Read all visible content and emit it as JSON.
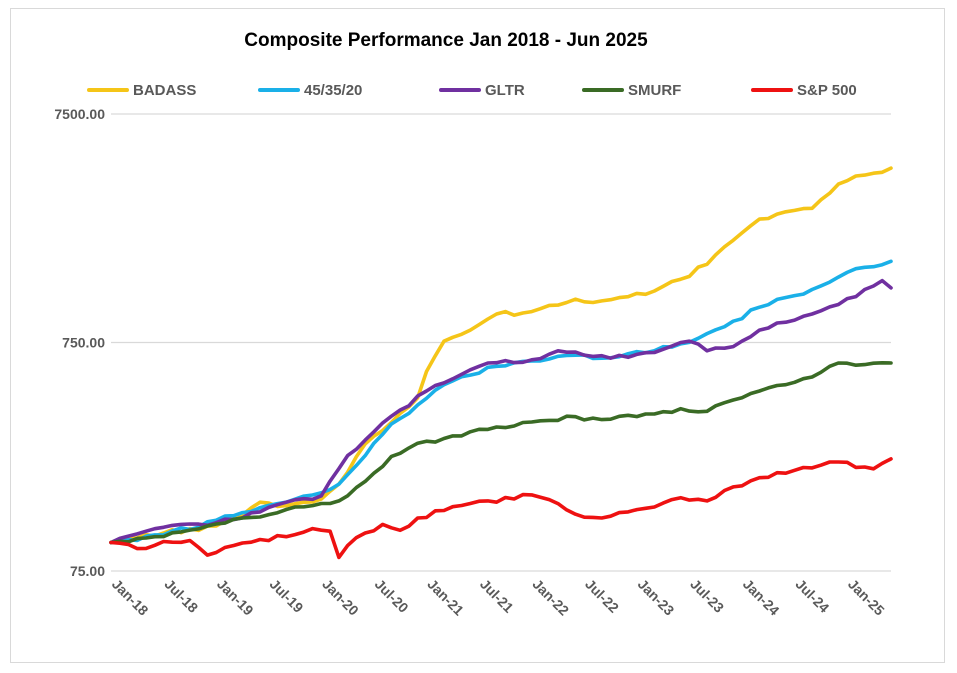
{
  "chart_data": {
    "type": "line",
    "title": "Composite Performance Jan 2018 - Jun 2025",
    "xlabel": "",
    "ylabel": "",
    "yscale": "log",
    "ylim": [
      75,
      7500
    ],
    "yticks": [
      75,
      750,
      7500
    ],
    "ytick_labels": [
      "75.00",
      "750.00",
      "7500.00"
    ],
    "x_start": "2018-01",
    "x_end": "2025-06",
    "xtick_labels": [
      "Jan-18",
      "Jul-18",
      "Jan-19",
      "Jul-19",
      "Jan-20",
      "Jul-20",
      "Jan-21",
      "Jul-21",
      "Jan-22",
      "Jul-22",
      "Jan-23",
      "Jul-23",
      "Jan-24",
      "Jul-24",
      "Jan-25"
    ],
    "grid": "horizontal",
    "legend_position": "top",
    "colors": {
      "BADASS": "#f5c518",
      "45/35/20": "#1ab0e8",
      "GLTR": "#7030a0",
      "SMURF": "#3a6b25",
      "S&P 500": "#ee1111"
    },
    "series": [
      {
        "name": "BADASS",
        "points": [
          [
            "2018-01",
            100
          ],
          [
            "2018-07",
            110
          ],
          [
            "2019-01",
            118
          ],
          [
            "2019-04",
            132
          ],
          [
            "2019-06",
            150
          ],
          [
            "2019-09",
            145
          ],
          [
            "2020-01",
            155
          ],
          [
            "2020-03",
            180
          ],
          [
            "2020-06",
            270
          ],
          [
            "2020-09",
            335
          ],
          [
            "2020-12",
            430
          ],
          [
            "2021-01",
            560
          ],
          [
            "2021-03",
            760
          ],
          [
            "2021-06",
            850
          ],
          [
            "2021-09",
            1000
          ],
          [
            "2021-12",
            1010
          ],
          [
            "2022-03",
            1090
          ],
          [
            "2022-06",
            1160
          ],
          [
            "2022-09",
            1140
          ],
          [
            "2022-12",
            1190
          ],
          [
            "2023-03",
            1260
          ],
          [
            "2023-06",
            1420
          ],
          [
            "2023-09",
            1650
          ],
          [
            "2023-12",
            2100
          ],
          [
            "2024-03",
            2600
          ],
          [
            "2024-06",
            2800
          ],
          [
            "2024-09",
            2900
          ],
          [
            "2024-12",
            3700
          ],
          [
            "2025-03",
            4050
          ],
          [
            "2025-06",
            4350
          ]
        ]
      },
      {
        "name": "45/35/20",
        "points": [
          [
            "2018-01",
            100
          ],
          [
            "2018-07",
            108
          ],
          [
            "2019-01",
            125
          ],
          [
            "2019-06",
            142
          ],
          [
            "2019-09",
            150
          ],
          [
            "2020-01",
            165
          ],
          [
            "2020-03",
            180
          ],
          [
            "2020-06",
            240
          ],
          [
            "2020-09",
            330
          ],
          [
            "2020-12",
            400
          ],
          [
            "2021-03",
            490
          ],
          [
            "2021-06",
            540
          ],
          [
            "2021-09",
            590
          ],
          [
            "2021-12",
            620
          ],
          [
            "2022-03",
            635
          ],
          [
            "2022-06",
            660
          ],
          [
            "2022-09",
            640
          ],
          [
            "2022-12",
            670
          ],
          [
            "2023-03",
            690
          ],
          [
            "2023-06",
            740
          ],
          [
            "2023-09",
            820
          ],
          [
            "2023-12",
            930
          ],
          [
            "2024-03",
            1070
          ],
          [
            "2024-06",
            1180
          ],
          [
            "2024-09",
            1280
          ],
          [
            "2024-12",
            1450
          ],
          [
            "2025-03",
            1600
          ],
          [
            "2025-06",
            1700
          ]
        ]
      },
      {
        "name": "GLTR",
        "points": [
          [
            "2018-01",
            100
          ],
          [
            "2018-05",
            112
          ],
          [
            "2018-09",
            120
          ],
          [
            "2019-01",
            122
          ],
          [
            "2019-06",
            136
          ],
          [
            "2019-09",
            150
          ],
          [
            "2020-01",
            160
          ],
          [
            "2020-04",
            240
          ],
          [
            "2020-07",
            305
          ],
          [
            "2020-10",
            380
          ],
          [
            "2021-01",
            460
          ],
          [
            "2021-04",
            520
          ],
          [
            "2021-07",
            590
          ],
          [
            "2021-10",
            625
          ],
          [
            "2022-01",
            630
          ],
          [
            "2022-04",
            690
          ],
          [
            "2022-07",
            660
          ],
          [
            "2022-10",
            640
          ],
          [
            "2023-01",
            665
          ],
          [
            "2023-04",
            700
          ],
          [
            "2023-07",
            760
          ],
          [
            "2023-09",
            690
          ],
          [
            "2023-12",
            720
          ],
          [
            "2024-03",
            850
          ],
          [
            "2024-06",
            920
          ],
          [
            "2024-09",
            1000
          ],
          [
            "2024-12",
            1100
          ],
          [
            "2025-03",
            1280
          ],
          [
            "2025-05",
            1400
          ],
          [
            "2025-06",
            1300
          ]
        ]
      },
      {
        "name": "SMURF",
        "points": [
          [
            "2018-01",
            100
          ],
          [
            "2018-06",
            106
          ],
          [
            "2018-12",
            118
          ],
          [
            "2019-04",
            128
          ],
          [
            "2019-08",
            135
          ],
          [
            "2019-12",
            145
          ],
          [
            "2020-03",
            152
          ],
          [
            "2020-06",
            185
          ],
          [
            "2020-09",
            238
          ],
          [
            "2020-12",
            272
          ],
          [
            "2021-03",
            285
          ],
          [
            "2021-06",
            305
          ],
          [
            "2021-09",
            320
          ],
          [
            "2021-12",
            335
          ],
          [
            "2022-03",
            342
          ],
          [
            "2022-06",
            355
          ],
          [
            "2022-09",
            345
          ],
          [
            "2022-12",
            360
          ],
          [
            "2023-03",
            365
          ],
          [
            "2023-06",
            385
          ],
          [
            "2023-09",
            375
          ],
          [
            "2023-12",
            420
          ],
          [
            "2024-03",
            460
          ],
          [
            "2024-06",
            490
          ],
          [
            "2024-09",
            530
          ],
          [
            "2024-12",
            610
          ],
          [
            "2025-03",
            600
          ],
          [
            "2025-06",
            610
          ]
        ]
      },
      {
        "name": "S&P 500",
        "points": [
          [
            "2018-01",
            100
          ],
          [
            "2018-04",
            94
          ],
          [
            "2018-07",
            101
          ],
          [
            "2018-10",
            102
          ],
          [
            "2018-12",
            88
          ],
          [
            "2019-03",
            97
          ],
          [
            "2019-06",
            103
          ],
          [
            "2019-09",
            106
          ],
          [
            "2019-12",
            115
          ],
          [
            "2020-02",
            112
          ],
          [
            "2020-03",
            86
          ],
          [
            "2020-05",
            105
          ],
          [
            "2020-08",
            120
          ],
          [
            "2020-10",
            113
          ],
          [
            "2020-12",
            128
          ],
          [
            "2021-03",
            138
          ],
          [
            "2021-06",
            148
          ],
          [
            "2021-09",
            150
          ],
          [
            "2021-12",
            162
          ],
          [
            "2022-03",
            154
          ],
          [
            "2022-06",
            133
          ],
          [
            "2022-09",
            128
          ],
          [
            "2022-12",
            136
          ],
          [
            "2023-03",
            143
          ],
          [
            "2023-06",
            157
          ],
          [
            "2023-09",
            152
          ],
          [
            "2023-12",
            175
          ],
          [
            "2024-03",
            192
          ],
          [
            "2024-06",
            201
          ],
          [
            "2024-09",
            212
          ],
          [
            "2024-12",
            225
          ],
          [
            "2025-03",
            214
          ],
          [
            "2025-04",
            210
          ],
          [
            "2025-06",
            232
          ]
        ]
      }
    ]
  }
}
